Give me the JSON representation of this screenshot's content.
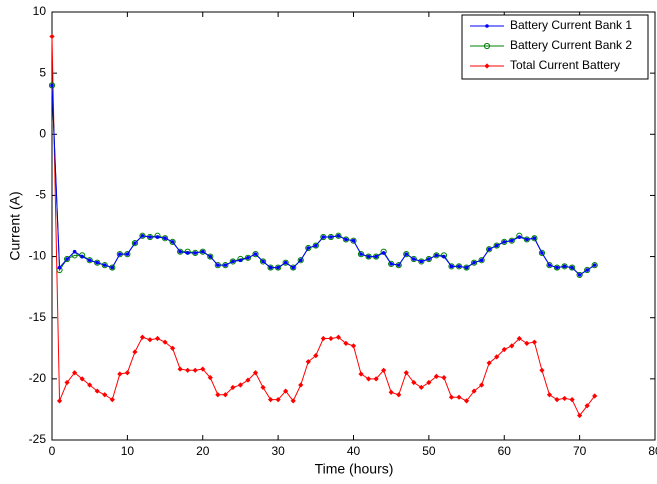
{
  "chart_data": {
    "type": "line",
    "xlabel": "Time (hours)",
    "ylabel": "Current (A)",
    "x": [
      0,
      1,
      2,
      3,
      4,
      5,
      6,
      7,
      8,
      9,
      10,
      11,
      12,
      13,
      14,
      15,
      16,
      17,
      18,
      19,
      20,
      21,
      22,
      23,
      24,
      25,
      26,
      27,
      28,
      29,
      30,
      31,
      32,
      33,
      34,
      35,
      36,
      37,
      38,
      39,
      40,
      41,
      42,
      43,
      44,
      45,
      46,
      47,
      48,
      49,
      50,
      51,
      52,
      53,
      54,
      55,
      56,
      57,
      58,
      59,
      60,
      61,
      62,
      63,
      64,
      65,
      66,
      67,
      68,
      69,
      70,
      71,
      72
    ],
    "series": [
      {
        "name": "Battery Current Bank 1",
        "color": "#0000ff",
        "marker": "dot",
        "values": [
          4,
          -10.9,
          -10.2,
          -9.6,
          -10,
          -10.3,
          -10.5,
          -10.7,
          -10.9,
          -9.8,
          -9.8,
          -8.9,
          -8.3,
          -8.4,
          -8.4,
          -8.5,
          -8.8,
          -9.6,
          -9.7,
          -9.7,
          -9.6,
          -10,
          -10.7,
          -10.7,
          -10.4,
          -10.3,
          -10.1,
          -9.8,
          -10.4,
          -10.9,
          -10.9,
          -10.5,
          -10.9,
          -10.3,
          -9.3,
          -9.1,
          -8.4,
          -8.4,
          -8.3,
          -8.6,
          -8.7,
          -9.8,
          -10,
          -10,
          -9.7,
          -10.6,
          -10.7,
          -9.8,
          -10.2,
          -10.4,
          -10.2,
          -9.9,
          -10,
          -10.8,
          -10.8,
          -10.9,
          -10.5,
          -10.3,
          -9.4,
          -9.1,
          -8.8,
          -8.7,
          -8.4,
          -8.6,
          -8.5,
          -9.7,
          -10.7,
          -10.9,
          -10.8,
          -10.9,
          -11.5,
          -11.1,
          -10.7
        ]
      },
      {
        "name": "Battery Current Bank 2",
        "color": "#008000",
        "marker": "circle",
        "values": [
          4,
          -11.1,
          -10.2,
          -9.9,
          -9.9,
          -10.3,
          -10.5,
          -10.7,
          -10.9,
          -9.8,
          -9.8,
          -8.9,
          -8.3,
          -8.4,
          -8.3,
          -8.5,
          -8.8,
          -9.6,
          -9.6,
          -9.7,
          -9.6,
          -10,
          -10.7,
          -10.7,
          -10.4,
          -10.2,
          -10.1,
          -9.8,
          -10.4,
          -10.9,
          -10.9,
          -10.5,
          -10.9,
          -10.3,
          -9.3,
          -9.1,
          -8.4,
          -8.4,
          -8.3,
          -8.6,
          -8.7,
          -9.8,
          -10,
          -10,
          -9.6,
          -10.6,
          -10.7,
          -9.8,
          -10.2,
          -10.4,
          -10.2,
          -9.9,
          -9.9,
          -10.8,
          -10.8,
          -10.9,
          -10.5,
          -10.3,
          -9.4,
          -9.1,
          -8.8,
          -8.7,
          -8.3,
          -8.6,
          -8.5,
          -9.7,
          -10.7,
          -10.9,
          -10.8,
          -10.9,
          -11.5,
          -11.1,
          -10.7
        ]
      },
      {
        "name": "Total Current Battery",
        "color": "#ff0000",
        "marker": "diamond",
        "values": [
          8,
          -21.8,
          -20.3,
          -19.5,
          -20,
          -20.5,
          -21,
          -21.3,
          -21.7,
          -19.6,
          -19.5,
          -17.8,
          -16.6,
          -16.8,
          -16.7,
          -17,
          -17.5,
          -19.2,
          -19.3,
          -19.3,
          -19.2,
          -19.9,
          -21.3,
          -21.3,
          -20.7,
          -20.5,
          -20.1,
          -19.5,
          -20.7,
          -21.7,
          -21.7,
          -21,
          -21.8,
          -20.5,
          -18.6,
          -18.1,
          -16.7,
          -16.7,
          -16.6,
          -17.1,
          -17.3,
          -19.6,
          -20,
          -20,
          -19.3,
          -21.1,
          -21.3,
          -19.5,
          -20.3,
          -20.7,
          -20.3,
          -19.8,
          -19.9,
          -21.5,
          -21.5,
          -21.8,
          -21,
          -20.5,
          -18.7,
          -18.2,
          -17.6,
          -17.3,
          -16.7,
          -17.1,
          -17,
          -19.3,
          -21.3,
          -21.7,
          -21.6,
          -21.7,
          -23,
          -22.2,
          -21.4
        ]
      }
    ],
    "xlim": [
      0,
      80
    ],
    "xticks": [
      0,
      10,
      20,
      30,
      40,
      50,
      60,
      70,
      80
    ],
    "ylim": [
      -25,
      10
    ],
    "yticks": [
      -25,
      -20,
      -15,
      -10,
      -5,
      0,
      5,
      10
    ],
    "legend": "upper right"
  }
}
